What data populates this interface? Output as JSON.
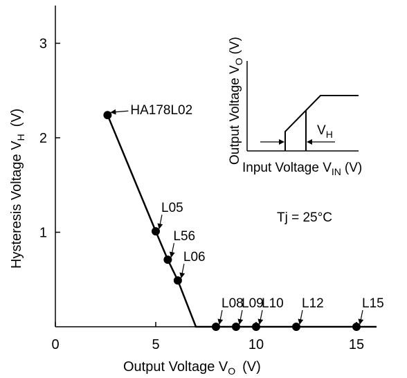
{
  "chart_data": {
    "type": "line",
    "title": "",
    "xlabel": "Output Voltage  V",
    "xlabel_sub": "O",
    "xlabel_unit": "(V)",
    "ylabel": "Hysteresis Voltage  V",
    "ylabel_sub": "H",
    "ylabel_unit": "(V)",
    "xlim": [
      0,
      16
    ],
    "ylim": [
      0,
      3.3
    ],
    "x_ticks": [
      0,
      5,
      10,
      15
    ],
    "y_ticks": [
      1,
      2,
      3
    ],
    "grid": false,
    "series": [
      {
        "x": [
          2.6,
          5.0,
          5.6,
          6.1,
          7.0,
          8.0,
          9.0,
          10.0,
          12.0,
          15.0,
          16.0
        ],
        "y": [
          2.24,
          1.01,
          0.71,
          0.49,
          0.0,
          0.0,
          0.0,
          0.0,
          0.0,
          0.0,
          0.0
        ]
      }
    ],
    "points": [
      {
        "label": "HA178L02",
        "x": 2.6,
        "y": 2.24
      },
      {
        "label": "L05",
        "x": 5.0,
        "y": 1.01
      },
      {
        "label": "L56",
        "x": 5.6,
        "y": 0.71
      },
      {
        "label": "L06",
        "x": 6.1,
        "y": 0.49
      },
      {
        "label": "L08",
        "x": 8.0,
        "y": 0.0
      },
      {
        "label": "L09",
        "x": 9.0,
        "y": 0.0
      },
      {
        "label": "L10",
        "x": 10.0,
        "y": 0.0
      },
      {
        "label": "L12",
        "x": 12.0,
        "y": 0.0
      },
      {
        "label": "L15",
        "x": 15.0,
        "y": 0.0
      }
    ],
    "annotation": "Tj = 25°C",
    "inset": {
      "xlabel": "Input Voltage V",
      "xlabel_sub": "IN",
      "xlabel_unit": "(V)",
      "ylabel": "Output Voltage V",
      "ylabel_sub": "O",
      "ylabel_unit": "(V)",
      "hysteresis_label": "V",
      "hysteresis_sub": "H"
    }
  }
}
